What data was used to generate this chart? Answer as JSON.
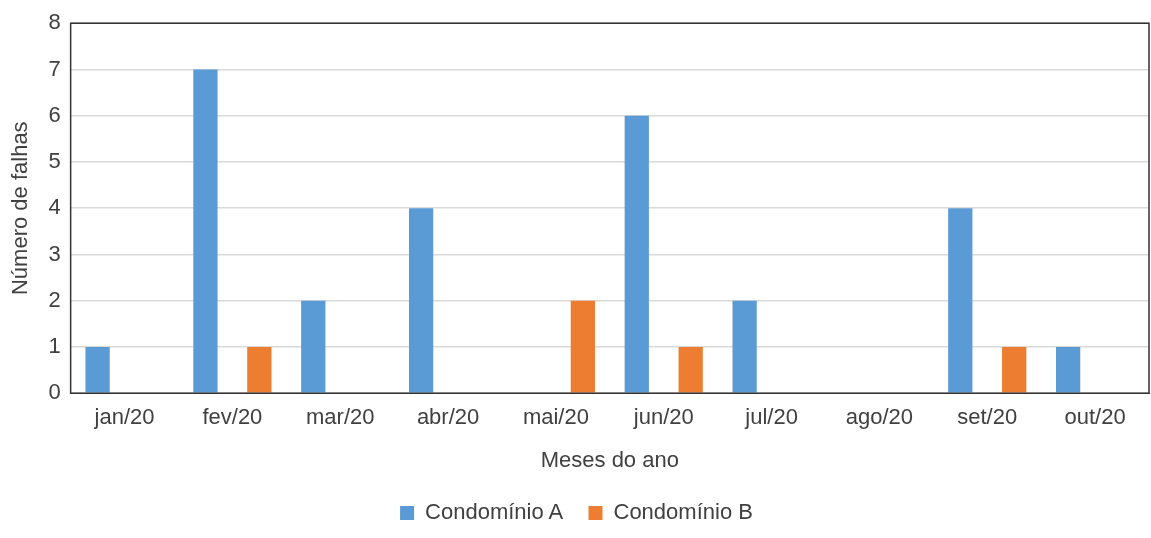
{
  "chart_data": {
    "type": "bar",
    "xlabel": "Meses do ano",
    "ylabel": "Número de falhas",
    "categories": [
      "jan/20",
      "fev/20",
      "mar/20",
      "abr/20",
      "mai/20",
      "jun/20",
      "jul/20",
      "ago/20",
      "set/20",
      "out/20"
    ],
    "series": [
      {
        "name": "Condomínio A",
        "color": "#5b9bd5",
        "values": [
          1,
          7,
          2,
          4,
          0,
          6,
          2,
          0,
          4,
          1
        ]
      },
      {
        "name": "Condomínio B",
        "color": "#ed7d31",
        "values": [
          0,
          1,
          0,
          0,
          2,
          1,
          0,
          0,
          1,
          0
        ]
      }
    ],
    "ylim": [
      0,
      8
    ],
    "yticks": [
      0,
      1,
      2,
      3,
      4,
      5,
      6,
      7,
      8
    ],
    "grid": "y",
    "legend": "bottom"
  }
}
